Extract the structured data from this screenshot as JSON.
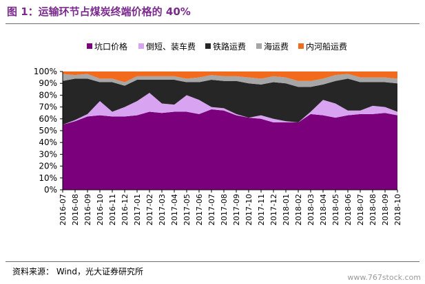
{
  "title": "图 1：运输环节占煤炭终端价格的 40%",
  "source": "资料来源：  Wind，光大证券研究所",
  "watermark": "www.767stock.com",
  "chart_data": {
    "type": "area",
    "stacked": true,
    "normalized_percent": true,
    "categories": [
      "2016-07",
      "2016-08",
      "2016-09",
      "2016-10",
      "2016-11",
      "2016-12",
      "2017-01",
      "2017-02",
      "2017-03",
      "2017-04",
      "2017-05",
      "2017-06",
      "2017-07",
      "2017-08",
      "2017-09",
      "2017-10",
      "2017-11",
      "2017-12",
      "2018-01",
      "2018-02",
      "2018-03",
      "2018-04",
      "2018-05",
      "2018-06",
      "2018-07",
      "2018-08",
      "2018-09",
      "2018-10"
    ],
    "x_tick_labels": [
      "2016-07",
      "2016-08",
      "2016-09",
      "2016-10",
      "2016-11",
      "2016-12",
      "2017-01",
      "2017-02",
      "2017-03",
      "2017-04",
      "2017-05",
      "2017-06",
      "2017-07",
      "2017-08",
      "2017-09",
      "2017-10",
      "2017-11",
      "2017-12",
      "2018-01",
      "2018-02",
      "2018-03",
      "2018-04",
      "2018-05",
      "2018-06",
      "2018-07",
      "2018-08",
      "2018-09",
      "2018-10"
    ],
    "y_tick_labels": [
      "0%",
      "10%",
      "20%",
      "30%",
      "40%",
      "50%",
      "60%",
      "70%",
      "80%",
      "90%",
      "100%"
    ],
    "ylim": [
      0,
      100
    ],
    "legend_position": "top",
    "series": [
      {
        "name": "坑口价格",
        "color": "#7b007b",
        "values": [
          55,
          58,
          62,
          63,
          62,
          62,
          63,
          66,
          65,
          66,
          66,
          64,
          68,
          67,
          63,
          61,
          60,
          57,
          57,
          57,
          64,
          63,
          61,
          63,
          64,
          64,
          65,
          63
        ]
      },
      {
        "name": "倒短、装车费",
        "color": "#d8a4f2",
        "values": [
          0,
          1,
          2,
          12,
          4,
          8,
          12,
          16,
          8,
          6,
          14,
          12,
          2,
          2,
          1,
          0,
          3,
          3,
          1,
          0,
          2,
          13,
          12,
          4,
          3,
          7,
          5,
          3
        ]
      },
      {
        "name": "铁路运费",
        "color": "#262626",
        "values": [
          37,
          35,
          30,
          16,
          25,
          18,
          18,
          11,
          20,
          21,
          11,
          15,
          23,
          23,
          28,
          29,
          26,
          31,
          32,
          30,
          21,
          13,
          19,
          27,
          24,
          20,
          21,
          24
        ]
      },
      {
        "name": "海运费",
        "color": "#a6a6a6",
        "values": [
          6,
          3,
          4,
          3,
          3,
          3,
          3,
          3,
          3,
          3,
          3,
          4,
          4,
          4,
          4,
          5,
          5,
          5,
          5,
          5,
          5,
          5,
          5,
          4,
          4,
          4,
          4,
          4
        ]
      },
      {
        "name": "内河船运费",
        "color": "#f26b1d",
        "values": [
          2,
          3,
          2,
          6,
          6,
          9,
          4,
          4,
          4,
          4,
          6,
          5,
          3,
          4,
          4,
          5,
          6,
          4,
          5,
          8,
          8,
          6,
          3,
          2,
          5,
          5,
          5,
          6
        ]
      }
    ]
  }
}
